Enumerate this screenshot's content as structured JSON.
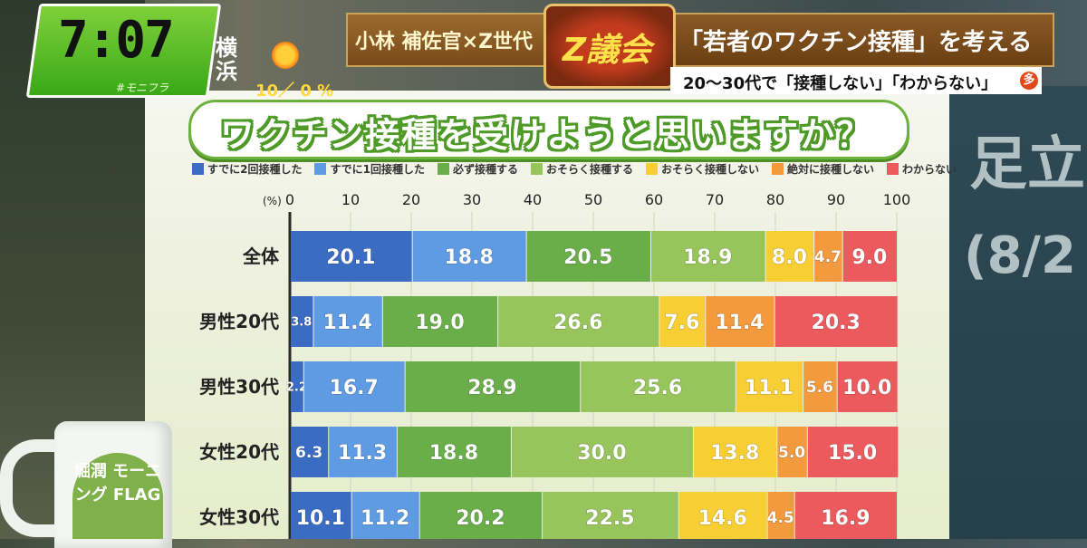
{
  "broadcast": {
    "clock_time": "7:07",
    "clock_tag": "#モニフラ",
    "weather_city": "横浜",
    "weather_value": "10／ 0 %",
    "banner_left": "小林 補佐官×Z世代",
    "logo_text": "Z議会",
    "banner_right": "「若者のワクチン接種」を考える",
    "subtitle": "20～30代で「接種しない」「わからない」",
    "subtitle_badge": "多",
    "bg_text_1": "足立",
    "bg_text_2": "(8/2",
    "mug_text": "堀潤 モーニング FLAG"
  },
  "colors": {
    "s1": "#3a6cc4",
    "s2": "#5f9be3",
    "s3": "#6aae4a",
    "s4": "#98c45c",
    "s5": "#f7ce33",
    "s6": "#f39a3e",
    "s7": "#ec5a5e"
  },
  "chart_data": {
    "type": "bar",
    "orientation": "horizontal-stacked",
    "title": "ワクチン接種を受けようと思いますか？",
    "unit": "(%)",
    "xlim": [
      0,
      100
    ],
    "x_ticks": [
      0,
      10,
      20,
      30,
      40,
      50,
      60,
      70,
      80,
      90,
      100
    ],
    "categories": [
      "全体",
      "男性20代",
      "男性30代",
      "女性20代",
      "女性30代"
    ],
    "series": [
      {
        "name": "すでに2回接種した",
        "values": [
          20.1,
          3.8,
          2.2,
          6.3,
          10.1
        ]
      },
      {
        "name": "すでに1回接種した",
        "values": [
          18.8,
          11.4,
          16.7,
          11.3,
          11.2
        ]
      },
      {
        "name": "必ず接種する",
        "values": [
          20.5,
          19.0,
          28.9,
          18.8,
          20.2
        ]
      },
      {
        "name": "おそらく接種する",
        "values": [
          18.9,
          26.6,
          25.6,
          30.0,
          22.5
        ]
      },
      {
        "name": "おそらく接種しない",
        "values": [
          8.0,
          7.6,
          11.1,
          13.8,
          14.6
        ]
      },
      {
        "name": "絶対に接種しない",
        "values": [
          4.7,
          11.4,
          5.6,
          5.0,
          4.5
        ]
      },
      {
        "name": "わからない",
        "values": [
          9.0,
          20.3,
          10.0,
          15.0,
          16.9
        ]
      }
    ],
    "grid": true,
    "legend_position": "top"
  }
}
